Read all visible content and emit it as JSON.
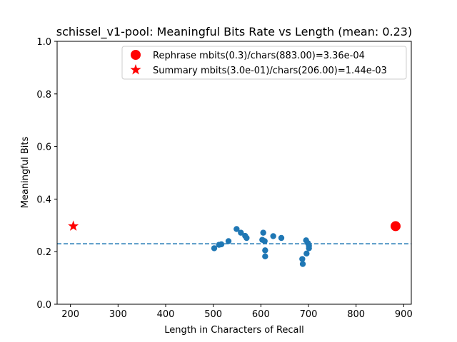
{
  "chart_data": {
    "type": "scatter",
    "title": "schissel_v1-pool: Meaningful Bits Rate vs Length (mean: 0.23)",
    "xlabel": "Length in Characters of Recall",
    "ylabel": "Meaningful Bits",
    "xlim": [
      172,
      916
    ],
    "ylim": [
      0.0,
      1.0
    ],
    "xticks": [
      200,
      300,
      400,
      500,
      600,
      700,
      800,
      900
    ],
    "yticks": [
      0.0,
      0.2,
      0.4,
      0.6,
      0.8,
      1.0
    ],
    "xtick_labels": [
      "200",
      "300",
      "400",
      "500",
      "600",
      "700",
      "800",
      "900"
    ],
    "ytick_labels": [
      "0.0",
      "0.2",
      "0.4",
      "0.6",
      "0.8",
      "1.0"
    ],
    "mean_line": 0.23,
    "grid": false,
    "legend_position": "top-right",
    "series": [
      {
        "marker": "circle-small",
        "color": "#1f77b4",
        "points": [
          [
            502,
            0.213
          ],
          [
            512,
            0.226
          ],
          [
            517,
            0.228
          ],
          [
            532,
            0.24
          ],
          [
            549,
            0.286
          ],
          [
            558,
            0.272
          ],
          [
            567,
            0.26
          ],
          [
            570,
            0.252
          ],
          [
            603,
            0.245
          ],
          [
            605,
            0.272
          ],
          [
            608,
            0.24
          ],
          [
            609,
            0.205
          ],
          [
            609,
            0.182
          ],
          [
            626,
            0.259
          ],
          [
            643,
            0.252
          ],
          [
            687,
            0.172
          ],
          [
            688,
            0.153
          ],
          [
            695,
            0.243
          ],
          [
            696,
            0.193
          ],
          [
            699,
            0.232
          ],
          [
            701,
            0.222
          ],
          [
            701,
            0.213
          ]
        ]
      },
      {
        "name": "Rephrase mbits(0.3)/chars(883.00)=3.36e-04",
        "marker": "circle-large",
        "color": "#ff0000",
        "points": [
          [
            883,
            0.297
          ]
        ]
      },
      {
        "name": "Summary mbits(3.0e-01)/chars(206.00)=1.44e-03",
        "marker": "star",
        "color": "#ff0000",
        "points": [
          [
            206,
            0.297
          ]
        ]
      }
    ]
  },
  "colors": {
    "scatter": "#1f77b4",
    "highlight": "#ff0000",
    "mean_line": "#1f77b4"
  }
}
